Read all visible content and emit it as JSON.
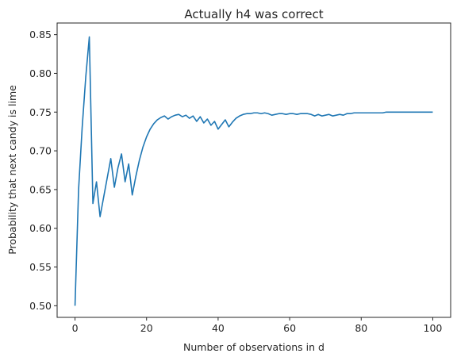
{
  "chart_data": {
    "type": "line",
    "title": "Actually h4 was correct",
    "xlabel": "Number of observations in d",
    "ylabel": "Probability that next candy is lime",
    "xlim": [
      -5,
      105
    ],
    "ylim": [
      0.485,
      0.865
    ],
    "xticks": [
      0,
      20,
      40,
      60,
      80,
      100
    ],
    "yticks": [
      0.5,
      0.55,
      0.6,
      0.65,
      0.7,
      0.75,
      0.8,
      0.85
    ],
    "ytick_labels": [
      "0.50",
      "0.55",
      "0.60",
      "0.65",
      "0.70",
      "0.75",
      "0.80",
      "0.85"
    ],
    "grid": false,
    "series_color": "#1f77b4",
    "series": [
      {
        "x": [
          0,
          1,
          2,
          3,
          4,
          5,
          6,
          7,
          8,
          9,
          10,
          11,
          12,
          13,
          14,
          15,
          16,
          17,
          18,
          19,
          20,
          21,
          22,
          23,
          24,
          25,
          26,
          27,
          28,
          29,
          30,
          31,
          32,
          33,
          34,
          35,
          36,
          37,
          38,
          39,
          40,
          41,
          42,
          43,
          44,
          45,
          46,
          47,
          48,
          49,
          50,
          51,
          52,
          53,
          54,
          55,
          56,
          57,
          58,
          59,
          60,
          61,
          62,
          63,
          64,
          65,
          66,
          67,
          68,
          69,
          70,
          71,
          72,
          73,
          74,
          75,
          76,
          77,
          78,
          79,
          80,
          81,
          82,
          83,
          84,
          85,
          86,
          87,
          88,
          89,
          90,
          91,
          92,
          93,
          94,
          95,
          96,
          97,
          98,
          99,
          100
        ],
        "values": [
          0.5,
          0.65,
          0.73,
          0.795,
          0.847,
          0.632,
          0.66,
          0.615,
          0.64,
          0.665,
          0.69,
          0.653,
          0.678,
          0.696,
          0.66,
          0.683,
          0.643,
          0.667,
          0.688,
          0.705,
          0.718,
          0.728,
          0.735,
          0.74,
          0.743,
          0.745,
          0.741,
          0.744,
          0.746,
          0.747,
          0.744,
          0.746,
          0.742,
          0.745,
          0.738,
          0.744,
          0.736,
          0.741,
          0.733,
          0.738,
          0.728,
          0.734,
          0.74,
          0.731,
          0.737,
          0.742,
          0.745,
          0.747,
          0.748,
          0.748,
          0.749,
          0.749,
          0.748,
          0.749,
          0.748,
          0.746,
          0.747,
          0.748,
          0.748,
          0.747,
          0.748,
          0.748,
          0.747,
          0.748,
          0.748,
          0.748,
          0.747,
          0.745,
          0.747,
          0.745,
          0.746,
          0.747,
          0.745,
          0.746,
          0.747,
          0.746,
          0.748,
          0.748,
          0.749,
          0.749,
          0.749,
          0.749,
          0.749,
          0.749,
          0.749,
          0.749,
          0.749,
          0.75,
          0.75,
          0.75,
          0.75,
          0.75,
          0.75,
          0.75,
          0.75,
          0.75,
          0.75,
          0.75,
          0.75,
          0.75,
          0.75
        ]
      }
    ]
  }
}
